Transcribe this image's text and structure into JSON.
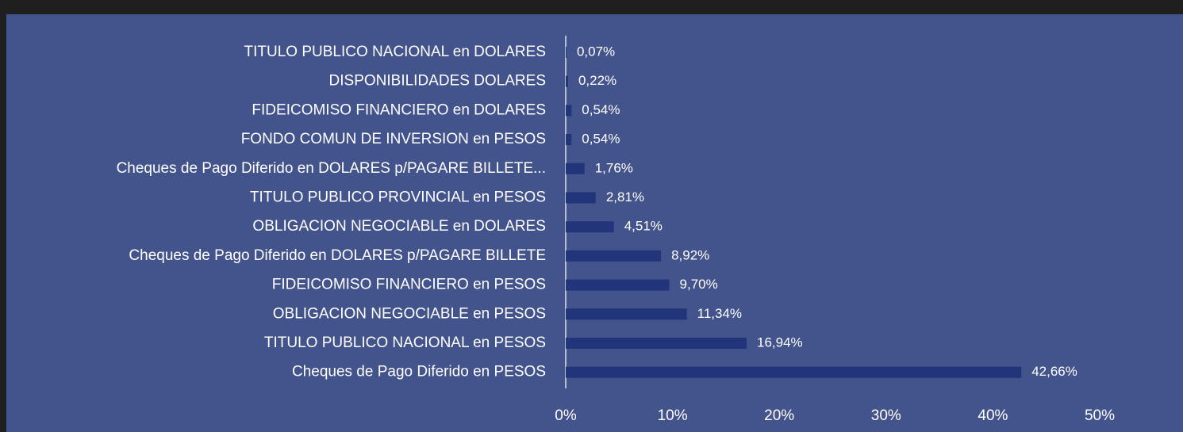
{
  "chart_data": {
    "type": "bar",
    "orientation": "horizontal",
    "categories": [
      "TITULO PUBLICO NACIONAL en DOLARES",
      "DISPONIBILIDADES DOLARES",
      "FIDEICOMISO FINANCIERO en DOLARES",
      "FONDO COMUN DE INVERSION en PESOS",
      "Cheques de Pago Diferido en DOLARES p/PAGARE BILLETE...",
      "TITULO PUBLICO PROVINCIAL en PESOS",
      "OBLIGACION NEGOCIABLE en DOLARES",
      "Cheques de Pago Diferido en DOLARES p/PAGARE BILLETE",
      "FIDEICOMISO FINANCIERO en PESOS",
      "OBLIGACION NEGOCIABLE en PESOS",
      "TITULO PUBLICO NACIONAL en PESOS",
      "Cheques de Pago Diferido en PESOS"
    ],
    "values": [
      0.07,
      0.22,
      0.54,
      0.54,
      1.76,
      2.81,
      4.51,
      8.92,
      9.7,
      11.34,
      16.94,
      42.66
    ],
    "value_labels": [
      "0,07%",
      "0,22%",
      "0,54%",
      "0,54%",
      "1,76%",
      "2,81%",
      "4,51%",
      "8,92%",
      "9,70%",
      "11,34%",
      "16,94%",
      "42,66%"
    ],
    "color": "#22347a",
    "xlim": [
      0,
      50
    ],
    "xticks": [
      {
        "value": 0,
        "label": "0%"
      },
      {
        "value": 10,
        "label": "10%"
      },
      {
        "value": 20,
        "label": "20%"
      },
      {
        "value": 30,
        "label": "30%"
      },
      {
        "value": 40,
        "label": "40%"
      },
      {
        "value": 50,
        "label": "50%"
      }
    ]
  }
}
